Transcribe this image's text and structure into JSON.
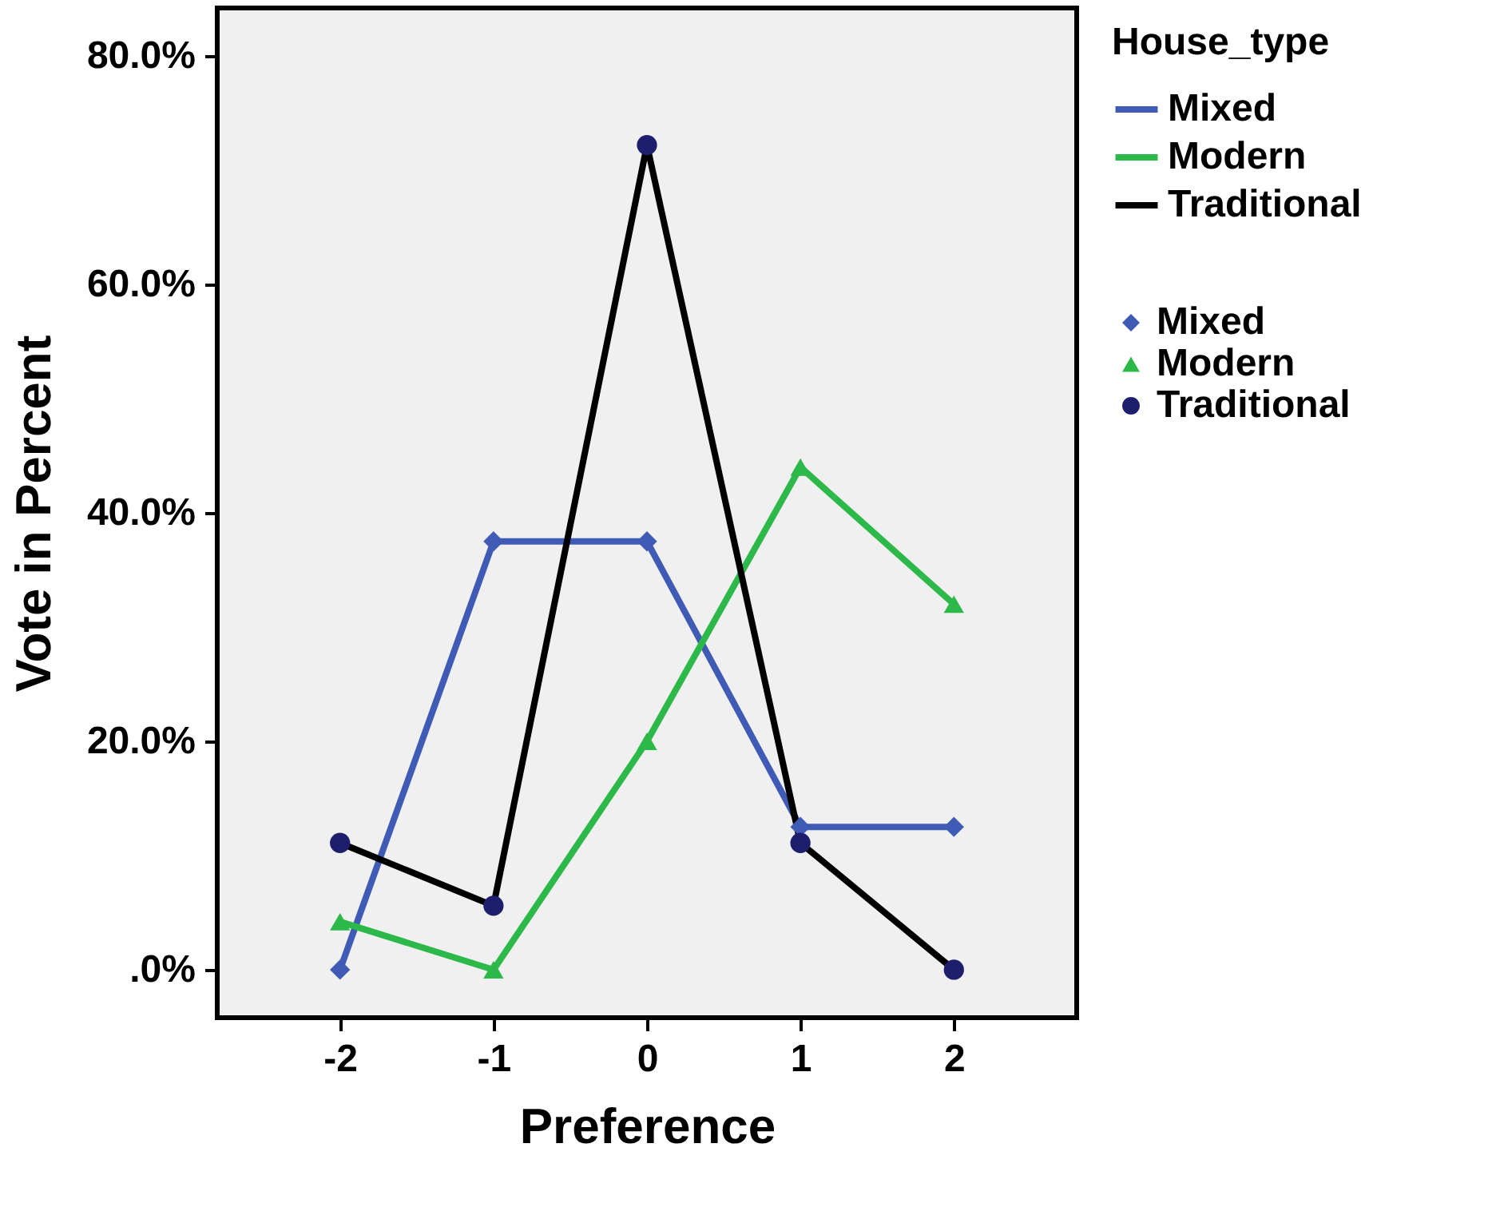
{
  "chart_data": {
    "type": "line",
    "xlabel": "Preference",
    "ylabel": "Vote in Percent",
    "legend_title": "House_type",
    "x": [
      -2,
      -1,
      0,
      1,
      2
    ],
    "series": [
      {
        "name": "Mixed",
        "color": "#3f5bb5",
        "marker": "diamond",
        "values": [
          0,
          37.5,
          37.5,
          12.5,
          12.5
        ]
      },
      {
        "name": "Modern",
        "color": "#2db84a",
        "marker": "triangle",
        "values": [
          4.2,
          0,
          20,
          44,
          32
        ]
      },
      {
        "name": "Traditional",
        "color": "#000000",
        "marker": "circle",
        "values": [
          11.1,
          5.6,
          72.2,
          11.1,
          0
        ]
      }
    ],
    "xlim": [
      -2.8,
      2.8
    ],
    "xticks": [
      {
        "value": -2,
        "label": "-2"
      },
      {
        "value": -1,
        "label": "-1"
      },
      {
        "value": 0,
        "label": "0"
      },
      {
        "value": 1,
        "label": "1"
      },
      {
        "value": 2,
        "label": "2"
      }
    ],
    "ylim": [
      -4.2,
      84.2
    ],
    "yticks": [
      {
        "value": 0,
        "label": ".0%"
      },
      {
        "value": 20,
        "label": "20.0%"
      },
      {
        "value": 40,
        "label": "40.0%"
      },
      {
        "value": 60,
        "label": "60.0%"
      },
      {
        "value": 80,
        "label": "80.0%"
      }
    ],
    "grid": false,
    "legend": "right",
    "line_style": "solid"
  }
}
